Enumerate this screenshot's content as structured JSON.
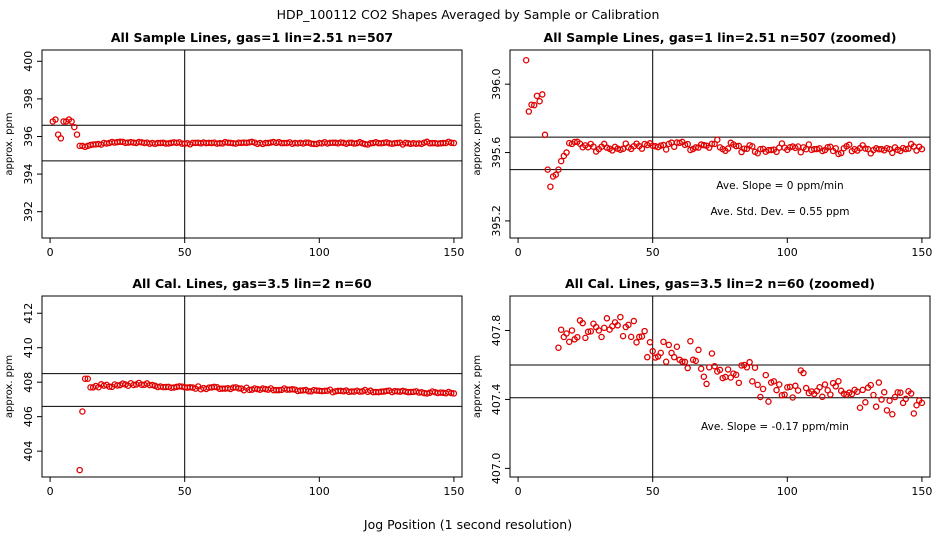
{
  "suptitle": "HDP_100112  CO2 Shapes Averaged by Sample or Calibration",
  "xlabel": "Jog Position (1 second resolution)",
  "colors": {
    "points": "#e00000",
    "lines": "#000000"
  },
  "chart_data": [
    {
      "type": "scatter",
      "title": "All Sample Lines, gas=1 lin=2.51 n=507",
      "ylabel": "approx. ppm",
      "xlim": [
        -3,
        153
      ],
      "ylim": [
        390.6,
        400.6
      ],
      "xticks": [
        0,
        50,
        100,
        150
      ],
      "xtick_labels": [
        "0",
        "50",
        "100",
        "150"
      ],
      "yticks": [
        392,
        394,
        396,
        398,
        400
      ],
      "ytick_labels": [
        "392",
        "394",
        "396",
        "398",
        "400"
      ],
      "vline": 50,
      "hlines": [
        394.7,
        396.6
      ],
      "grid": false,
      "annotations": [],
      "keypoints": [
        [
          1,
          396.8
        ],
        [
          2,
          396.9
        ],
        [
          3,
          396.1
        ],
        [
          4,
          395.9
        ],
        [
          5,
          396.8
        ],
        [
          6,
          396.8
        ],
        [
          7,
          396.9
        ],
        [
          8,
          396.8
        ],
        [
          9,
          396.5
        ],
        [
          10,
          396.1
        ],
        [
          11,
          395.5
        ],
        [
          12,
          395.5
        ],
        [
          13,
          395.45
        ],
        [
          14,
          395.5
        ],
        [
          15,
          395.55
        ],
        [
          18,
          395.6
        ],
        [
          25,
          395.7
        ],
        [
          40,
          395.65
        ],
        [
          60,
          395.65
        ],
        [
          80,
          395.65
        ],
        [
          100,
          395.65
        ],
        [
          120,
          395.65
        ],
        [
          150,
          395.65
        ]
      ],
      "noise": 0.04
    },
    {
      "type": "scatter",
      "title": "All Sample Lines, gas=1 lin=2.51 n=507 (zoomed)",
      "ylabel": "approx. ppm",
      "xlim": [
        -3,
        153
      ],
      "ylim": [
        395.1,
        396.2
      ],
      "xticks": [
        0,
        50,
        100,
        150
      ],
      "xtick_labels": [
        "0",
        "50",
        "100",
        "150"
      ],
      "yticks": [
        395.2,
        395.6,
        396.0
      ],
      "ytick_labels": [
        "395.2",
        "395.6",
        "396.0"
      ],
      "vline": 50,
      "hlines": [
        395.5,
        395.69
      ],
      "grid": false,
      "annotations": [
        "Ave. Slope =  0  ppm/min",
        "Ave. Std. Dev. =  0.55  ppm"
      ],
      "keypoints": [
        [
          3,
          396.14
        ],
        [
          4,
          395.84
        ],
        [
          5,
          395.88
        ],
        [
          9,
          395.94
        ],
        [
          11,
          395.5
        ],
        [
          12,
          395.4
        ],
        [
          13,
          395.46
        ],
        [
          14,
          395.47
        ],
        [
          15,
          395.5
        ],
        [
          16,
          395.55
        ],
        [
          17,
          395.58
        ],
        [
          18,
          395.6
        ],
        [
          20,
          395.65
        ],
        [
          30,
          395.62
        ],
        [
          50,
          395.64
        ],
        [
          70,
          395.64
        ],
        [
          90,
          395.62
        ],
        [
          110,
          395.62
        ],
        [
          130,
          395.62
        ],
        [
          150,
          395.62
        ]
      ],
      "noise": 0.022
    },
    {
      "type": "scatter",
      "title": "All Cal. Lines, gas=3.5 lin=2 n=60",
      "ylabel": "approx. ppm",
      "xlim": [
        -3,
        153
      ],
      "ylim": [
        402.5,
        413.0
      ],
      "xticks": [
        0,
        50,
        100,
        150
      ],
      "xtick_labels": [
        "0",
        "50",
        "100",
        "150"
      ],
      "yticks": [
        404,
        406,
        408,
        410,
        412
      ],
      "ytick_labels": [
        "404",
        "406",
        "408",
        "410",
        "412"
      ],
      "vline": 50,
      "hlines": [
        406.6,
        408.5
      ],
      "grid": false,
      "annotations": [],
      "keypoints": [
        [
          11,
          402.9
        ],
        [
          12,
          406.3
        ],
        [
          13,
          408.2
        ],
        [
          14,
          408.2
        ],
        [
          15,
          407.7
        ],
        [
          16,
          407.7
        ],
        [
          20,
          407.8
        ],
        [
          35,
          407.85
        ],
        [
          50,
          407.7
        ],
        [
          80,
          407.6
        ],
        [
          100,
          407.5
        ],
        [
          130,
          407.45
        ],
        [
          150,
          407.35
        ]
      ],
      "noise": 0.06
    },
    {
      "type": "scatter",
      "title": "All Cal. Lines, gas=3.5 lin=2 n=60 (zoomed)",
      "ylabel": "approx. ppm",
      "xlim": [
        -3,
        153
      ],
      "ylim": [
        406.95,
        408.0
      ],
      "xticks": [
        0,
        50,
        100,
        150
      ],
      "xtick_labels": [
        "0",
        "50",
        "100",
        "150"
      ],
      "yticks": [
        407.0,
        407.4,
        407.8
      ],
      "ytick_labels": [
        "407.0",
        "407.4",
        "407.8"
      ],
      "vline": 50,
      "hlines": [
        407.41,
        407.6
      ],
      "grid": false,
      "annotations": [
        "Ave. Slope =  -0.17  ppm/min"
      ],
      "keypoints": [
        [
          15,
          407.7
        ],
        [
          20,
          407.8
        ],
        [
          30,
          407.8
        ],
        [
          40,
          407.82
        ],
        [
          50,
          407.68
        ],
        [
          60,
          407.63
        ],
        [
          80,
          407.55
        ],
        [
          100,
          407.47
        ],
        [
          120,
          407.45
        ],
        [
          150,
          407.38
        ]
      ],
      "noise": 0.065
    }
  ]
}
